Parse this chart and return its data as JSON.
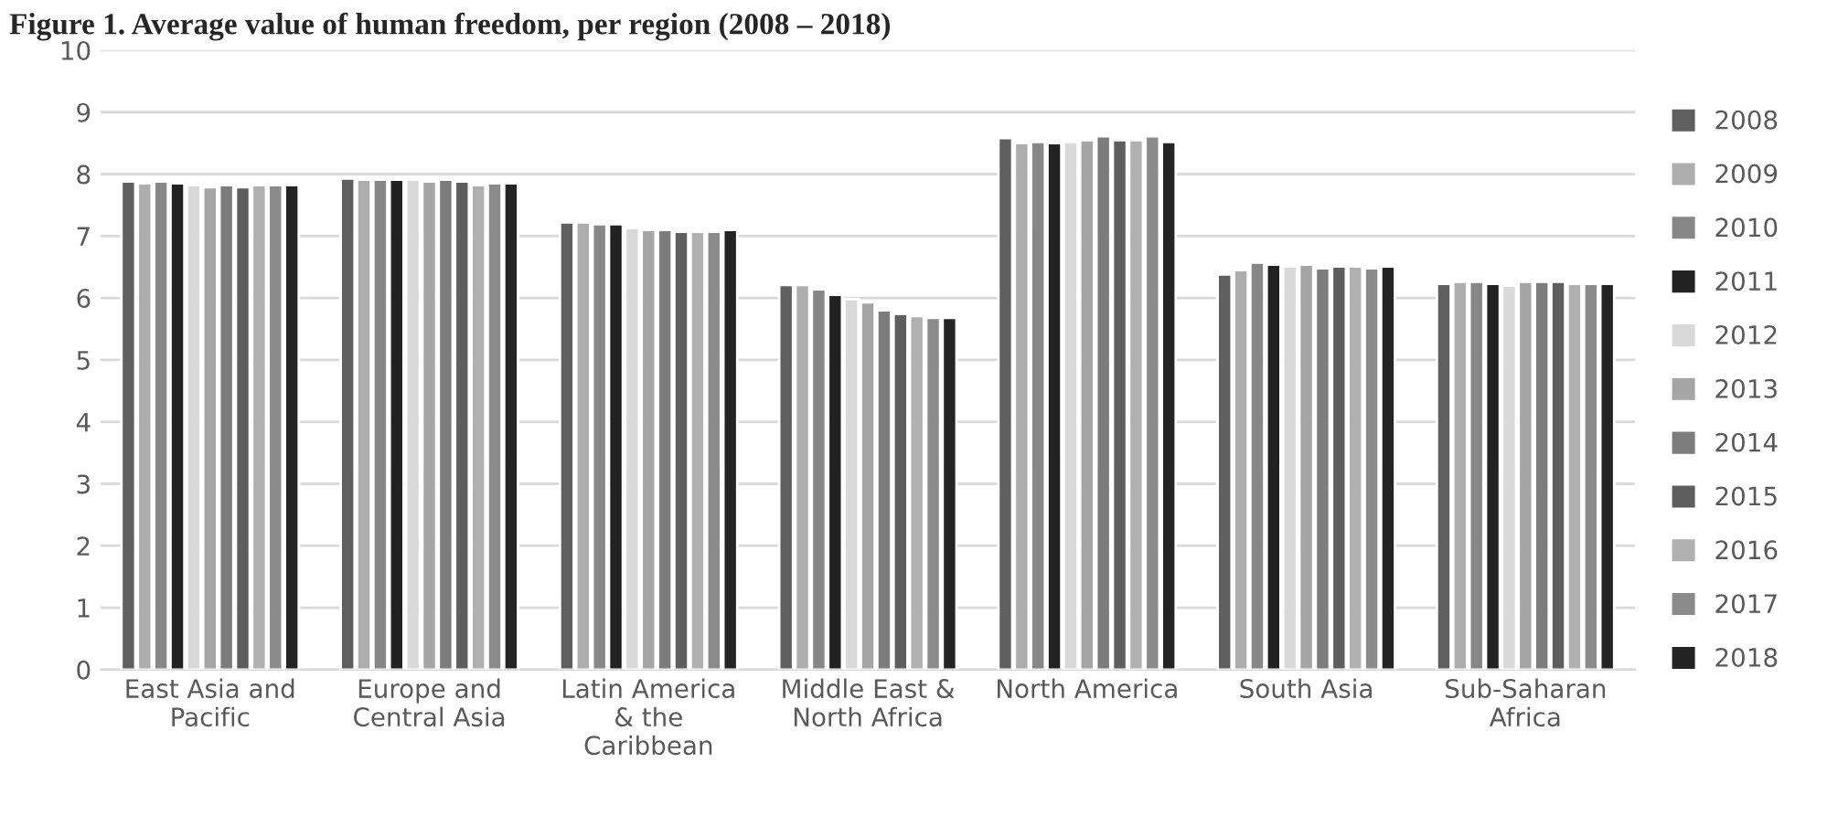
{
  "chart_data": {
    "type": "bar",
    "title": "Figure 1. Average value of human freedom, per region (2008 – 2018)",
    "categories": [
      "East Asia and Pacific",
      "Europe and Central Asia",
      "Latin America & the Caribbean",
      "Middle East & North Africa",
      "North America",
      "South Asia",
      "Sub-Saharan Africa"
    ],
    "series": [
      {
        "name": "2008",
        "color": "#5f5f5f",
        "values": [
          7.88,
          7.93,
          7.22,
          6.21,
          8.58,
          6.38,
          6.23
        ]
      },
      {
        "name": "2009",
        "color": "#adadad",
        "values": [
          7.85,
          7.91,
          7.22,
          6.21,
          8.5,
          6.45,
          6.26
        ]
      },
      {
        "name": "2010",
        "color": "#878787",
        "values": [
          7.88,
          7.91,
          7.19,
          6.14,
          8.52,
          6.57,
          6.26
        ]
      },
      {
        "name": "2011",
        "color": "#222222",
        "values": [
          7.85,
          7.91,
          7.19,
          6.05,
          8.5,
          6.54,
          6.23
        ]
      },
      {
        "name": "2012",
        "color": "#d9d9d9",
        "values": [
          7.82,
          7.91,
          7.13,
          5.98,
          8.52,
          6.51,
          6.2
        ]
      },
      {
        "name": "2013",
        "color": "#a5a5a5",
        "values": [
          7.79,
          7.88,
          7.1,
          5.93,
          8.55,
          6.54,
          6.26
        ]
      },
      {
        "name": "2014",
        "color": "#7c7c7c",
        "values": [
          7.82,
          7.91,
          7.1,
          5.8,
          8.61,
          6.48,
          6.26
        ]
      },
      {
        "name": "2015",
        "color": "#5e5e5e",
        "values": [
          7.79,
          7.88,
          7.07,
          5.74,
          8.55,
          6.51,
          6.26
        ]
      },
      {
        "name": "2016",
        "color": "#b0b0b0",
        "values": [
          7.82,
          7.82,
          7.07,
          5.71,
          8.55,
          6.51,
          6.23
        ]
      },
      {
        "name": "2017",
        "color": "#8b8b8b",
        "values": [
          7.82,
          7.85,
          7.07,
          5.68,
          8.61,
          6.48,
          6.23
        ]
      },
      {
        "name": "2018",
        "color": "#242424",
        "values": [
          7.82,
          7.85,
          7.1,
          5.68,
          8.52,
          6.51,
          6.23
        ]
      }
    ],
    "ylim": [
      0,
      10
    ],
    "yticks": [
      0,
      1,
      2,
      3,
      4,
      5,
      6,
      7,
      8,
      9,
      10
    ],
    "grid": "y",
    "legend": "right"
  }
}
